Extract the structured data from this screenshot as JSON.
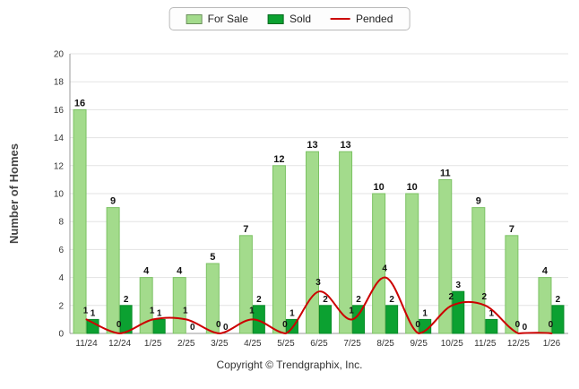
{
  "legend": {
    "for_sale": "For Sale",
    "sold": "Sold",
    "pended": "Pended"
  },
  "footer": "Copyright © Trendgraphix, Inc.",
  "colors": {
    "for_sale": "#A3DB8C",
    "for_sale_border": "#7CC264",
    "sold": "#0CA131",
    "sold_border": "#078A27",
    "pended": "#CC0000",
    "grid": "#E3E3E3",
    "axis": "#999999",
    "label": "#111111",
    "tick": "#333333",
    "axis_title": "#444444"
  },
  "chart_data": {
    "type": "bar",
    "categories": [
      "11/24",
      "12/24",
      "1/25",
      "2/25",
      "3/25",
      "4/25",
      "5/25",
      "6/25",
      "7/25",
      "8/25",
      "9/25",
      "10/25",
      "11/25",
      "12/25",
      "1/26"
    ],
    "series": [
      {
        "name": "For Sale",
        "type": "bar",
        "color_key": "for_sale",
        "values": [
          16,
          9,
          4,
          4,
          5,
          7,
          12,
          13,
          13,
          10,
          10,
          11,
          9,
          7,
          4
        ]
      },
      {
        "name": "Sold",
        "type": "bar",
        "color_key": "sold",
        "values": [
          1,
          2,
          1,
          0,
          0,
          2,
          1,
          2,
          2,
          2,
          1,
          3,
          1,
          0,
          2
        ]
      },
      {
        "name": "Pended",
        "type": "line",
        "color_key": "pended",
        "values": [
          1,
          0,
          1,
          1,
          0,
          1,
          0,
          3,
          1,
          4,
          0,
          2,
          2,
          0,
          0
        ]
      }
    ],
    "title": "",
    "xlabel": "",
    "ylabel": "Number of Homes",
    "ylim": [
      0,
      20
    ],
    "ytick_step": 2,
    "grid": true,
    "legend_position": "top"
  }
}
